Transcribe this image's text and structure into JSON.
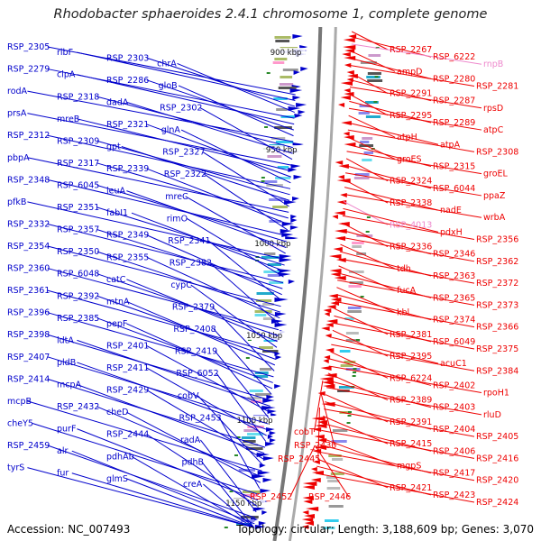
{
  "title": "Rhodobacter sphaeroides 2.4.1 chromosome 1, complete genome",
  "footer": {
    "accession": "Accession: NC_007493",
    "summary": "Topology: circular; Length: 3,188,609 bp; Genes: 3,070"
  },
  "colors": {
    "forward": "#0000cc",
    "reverse": "#ee0000",
    "rna": "#ee88cc",
    "backbone": "#888888"
  },
  "kbp_labels": [
    "900 kbp",
    "950 kbp",
    "1000 kbp",
    "1050 kbp",
    "1100 kbp",
    "1150 kbp"
  ],
  "left_labels": [
    "RSP_2305",
    "ribF",
    "RSP_2303",
    "chrA",
    "RSP_2279",
    "clpA",
    "RSP_2286",
    "gloB",
    "rodA",
    "RSP_2318",
    "dadA",
    "RSP_2302",
    "prsA",
    "mreB",
    "RSP_2321",
    "glnA",
    "RSP_2312",
    "RSP_2309",
    "gpt",
    "RSP_2327",
    "pbpA",
    "RSP_2317",
    "RSP_2339",
    "RSP_2322",
    "RSP_2348",
    "RSP_6045",
    "leuA",
    "mreC",
    "pfkB",
    "RSP_2351",
    "fabI1",
    "rimO",
    "RSP_2332",
    "RSP_2357",
    "RSP_2349",
    "RSP_2341",
    "RSP_2354",
    "RSP_2350",
    "RSP_2355",
    "RSP_2382",
    "RSP_2360",
    "RSP_6048",
    "catC",
    "cypC",
    "RSP_2361",
    "RSP_2392",
    "mtnA",
    "RSP_2379",
    "RSP_2396",
    "RSP_2385",
    "pepF",
    "RSP_2408",
    "RSP_2398",
    "ldtA",
    "RSP_2401",
    "RSP_2419",
    "RSP_2407",
    "pldB",
    "RSP_2411",
    "RSP_6052",
    "RSP_2414",
    "mcpA",
    "RSP_2429",
    "cobV",
    "mcpB",
    "RSP_2432",
    "cheD",
    "RSP_2453",
    "cheY5",
    "purF",
    "RSP_2444",
    "radA",
    "RSP_2459",
    "alr",
    "pdhAb",
    "pdhB",
    "tyrS",
    "fur",
    "glmS",
    "creA"
  ],
  "right_labels": [
    "RSP_2267",
    "RSP_6222",
    "rnpB",
    "ampD",
    "RSP_2280",
    "RSP_2281",
    "RSP_2291",
    "RSP_2287",
    "rpsD",
    "RSP_2295",
    "RSP_2289",
    "atpC",
    "atpH",
    "atpA",
    "RSP_2308",
    "groES",
    "RSP_2315",
    "groEL",
    "RSP_2324",
    "RSP_6044",
    "ppaZ",
    "RSP_2338",
    "nadE",
    "wrbA",
    "RSP_4013",
    "pdxH",
    "RSP_2356",
    "RSP_2336",
    "RSP_2346",
    "RSP_2362",
    "tdh",
    "RSP_2363",
    "RSP_2372",
    "fucA",
    "RSP_2365",
    "RSP_2373",
    "kbl",
    "RSP_2374",
    "RSP_2366",
    "RSP_2381",
    "RSP_6049",
    "RSP_2375",
    "RSP_2395",
    "acuC1",
    "RSP_2384",
    "RSP_6224",
    "RSP_2402",
    "rpoH1",
    "RSP_2389",
    "RSP_2403",
    "rluD",
    "RSP_2391",
    "RSP_2404",
    "RSP_2405",
    "RSP_2415",
    "RSP_2406",
    "RSP_2416",
    "mgpS",
    "RSP_2417",
    "RSP_2420",
    "RSP_2421",
    "RSP_2423",
    "RSP_2424"
  ],
  "bottom_labels": [
    "cobT",
    "RSP_2430",
    "RSP_2445",
    "RSP_2452",
    "RSP_2446"
  ]
}
